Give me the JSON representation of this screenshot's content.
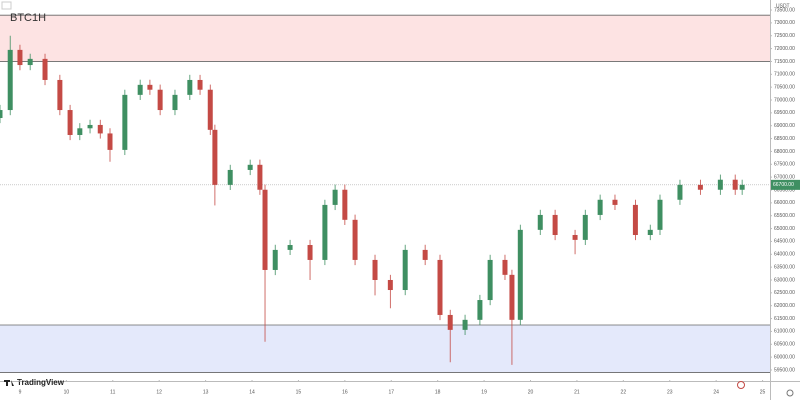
{
  "chart_data": {
    "type": "candlestick",
    "title": "BTC1H",
    "currency": "USDT",
    "brand": "TradingView",
    "up_color": "#3f8f62",
    "down_color": "#c44a45",
    "xlim": [
      8.57,
      25.16
    ],
    "ylim": [
      59110,
      73890
    ],
    "xticks": [
      9,
      10,
      11,
      12,
      13,
      14,
      15,
      16,
      17,
      18,
      19,
      20,
      21,
      22,
      23,
      24,
      25
    ],
    "yticks": [
      {
        "value": 59500,
        "label": "59500.00"
      },
      {
        "value": 60000,
        "label": "60000.00"
      },
      {
        "value": 60500,
        "label": "60500.00"
      },
      {
        "value": 61000,
        "label": "61000.00"
      },
      {
        "value": 61500,
        "label": "61500.00"
      },
      {
        "value": 62000,
        "label": "62000.00"
      },
      {
        "value": 62500,
        "label": "62500.00"
      },
      {
        "value": 63000,
        "label": "63000.00"
      },
      {
        "value": 63500,
        "label": "63500.00"
      },
      {
        "value": 64000,
        "label": "64000.00"
      },
      {
        "value": 64500,
        "label": "64500.00"
      },
      {
        "value": 65000,
        "label": "65000.00"
      },
      {
        "value": 65500,
        "label": "65500.00"
      },
      {
        "value": 66000,
        "label": "66000.00"
      },
      {
        "value": 66500,
        "label": "66500.00"
      },
      {
        "value": 67000,
        "label": "67000.00"
      },
      {
        "value": 67500,
        "label": "67500.00"
      },
      {
        "value": 68000,
        "label": "68000.00"
      },
      {
        "value": 68500,
        "label": "68500.00"
      },
      {
        "value": 69000,
        "label": "69000.00"
      },
      {
        "value": 69500,
        "label": "69500.00"
      },
      {
        "value": 70000,
        "label": "70000.00"
      },
      {
        "value": 70500,
        "label": "70500.00"
      },
      {
        "value": 71000,
        "label": "71000.00"
      },
      {
        "value": 71500,
        "label": "71500.00"
      },
      {
        "value": 72000,
        "label": "72000.00"
      },
      {
        "value": 72500,
        "label": "72500.00"
      },
      {
        "value": 73000,
        "label": "73000.00"
      },
      {
        "value": 73500,
        "label": "73500.00"
      }
    ],
    "zones": [
      {
        "from": 71500,
        "to": 73300,
        "color": "#fde3e3"
      },
      {
        "from": 59400,
        "to": 61250,
        "color": "#e4e9fb"
      }
    ],
    "current_price": {
      "value": 66700,
      "label": "66700.00",
      "color": "#3f8f62"
    },
    "x": [
      8.57,
      8.79,
      9.0,
      9.22,
      9.54,
      9.86,
      10.08,
      10.29,
      10.51,
      10.73,
      10.94,
      11.26,
      11.59,
      11.8,
      12.02,
      12.34,
      12.66,
      12.88,
      13.1,
      13.2,
      13.53,
      13.96,
      14.17,
      14.28,
      14.5,
      14.82,
      15.25,
      15.57,
      15.79,
      16.0,
      16.22,
      16.65,
      16.98,
      17.3,
      17.73,
      18.05,
      18.27,
      18.59,
      18.91,
      19.13,
      19.45,
      19.6,
      19.78,
      20.21,
      20.53,
      20.96,
      21.18,
      21.5,
      21.82,
      22.26,
      22.58,
      22.79,
      23.22,
      23.66,
      24.09,
      24.41,
      24.56
    ],
    "open": [
      69300,
      69610,
      71950,
      71360,
      71600,
      70780,
      69610,
      68640,
      68900,
      69030,
      68700,
      68060,
      70200,
      70590,
      70400,
      69610,
      70200,
      70780,
      70400,
      68840,
      66700,
      67280,
      67480,
      66510,
      63390,
      64170,
      64360,
      63780,
      65920,
      66510,
      65340,
      63780,
      63000,
      62610,
      64170,
      63780,
      61640,
      61060,
      61450,
      62220,
      63780,
      63200,
      61450,
      64950,
      65530,
      64750,
      64560,
      65530,
      66120,
      65920,
      64750,
      64950,
      66120,
      66700,
      66510,
      66900,
      66510
    ],
    "high": [
      69810,
      72500,
      72150,
      71800,
      71800,
      70980,
      69810,
      69100,
      69230,
      69230,
      68900,
      70400,
      70790,
      70790,
      70600,
      70400,
      70980,
      70980,
      70600,
      69040,
      67480,
      67680,
      67680,
      66710,
      64370,
      64560,
      64560,
      66120,
      66710,
      66710,
      65540,
      63980,
      63200,
      64370,
      64370,
      63980,
      61840,
      61650,
      62420,
      63980,
      63980,
      63400,
      65150,
      65730,
      65730,
      64950,
      65730,
      66320,
      66320,
      66120,
      65150,
      66320,
      66900,
      66900,
      67100,
      67100,
      66900
    ],
    "low": [
      69100,
      69410,
      71160,
      71160,
      70580,
      69410,
      68440,
      68440,
      68700,
      68500,
      67600,
      67860,
      70000,
      70200,
      69410,
      69410,
      70000,
      70200,
      68640,
      65900,
      66500,
      67080,
      66310,
      60600,
      63190,
      63970,
      63000,
      63580,
      65720,
      65140,
      63580,
      62400,
      61900,
      62410,
      63580,
      61440,
      59800,
      60860,
      61250,
      62020,
      63000,
      59700,
      61250,
      64750,
      64550,
      64000,
      64360,
      65330,
      65720,
      64550,
      64550,
      64750,
      65920,
      66310,
      66310,
      66310,
      66310
    ],
    "close": [
      69610,
      71950,
      71360,
      71600,
      70780,
      69610,
      68640,
      68900,
      69030,
      68700,
      68060,
      70200,
      70590,
      70400,
      69610,
      70200,
      70780,
      70400,
      68840,
      66700,
      67280,
      67480,
      66510,
      63390,
      64170,
      64360,
      63780,
      65920,
      66510,
      65340,
      63780,
      63000,
      62610,
      64170,
      63780,
      61640,
      61060,
      61450,
      62220,
      63780,
      63200,
      61450,
      64950,
      65530,
      64750,
      64560,
      65530,
      66120,
      65920,
      64750,
      64950,
      66120,
      66700,
      66510,
      66900,
      66510,
      66700
    ]
  }
}
